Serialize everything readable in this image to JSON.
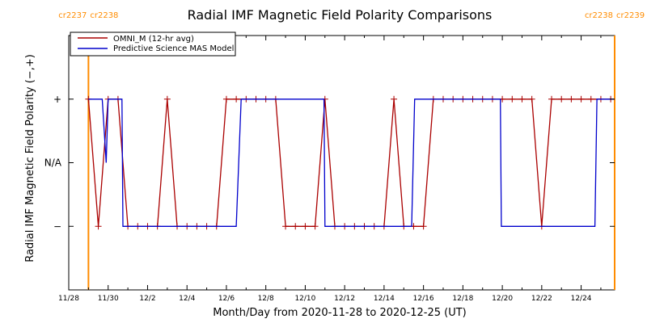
{
  "chart_data": {
    "type": "line",
    "title": "Radial IMF Magnetic Field Polarity Comparisons",
    "xlabel": "Month/Day from 2020-11-28 to 2020-12-25 (UT)",
    "ylabel": "Radial IMF Magnetic Field Polarity (−,+)",
    "xlim": [
      0,
      27.7
    ],
    "ylim": [
      -2,
      2
    ],
    "x_unit": "days after 2020-11-28 00:00 UT",
    "x_ticks": [
      {
        "value": 0,
        "label": "11/28"
      },
      {
        "value": 2,
        "label": "11/30"
      },
      {
        "value": 4,
        "label": "12/2"
      },
      {
        "value": 6,
        "label": "12/4"
      },
      {
        "value": 8,
        "label": "12/6"
      },
      {
        "value": 10,
        "label": "12/8"
      },
      {
        "value": 12,
        "label": "12/10"
      },
      {
        "value": 14,
        "label": "12/12"
      },
      {
        "value": 16,
        "label": "12/14"
      },
      {
        "value": 18,
        "label": "12/16"
      },
      {
        "value": 20,
        "label": "12/18"
      },
      {
        "value": 22,
        "label": "12/20"
      },
      {
        "value": 24,
        "label": "12/22"
      },
      {
        "value": 26,
        "label": "12/24"
      }
    ],
    "y_ticks": [
      {
        "value": 1,
        "label": "+"
      },
      {
        "value": 0,
        "label": "N/A"
      },
      {
        "value": -1,
        "label": "−"
      }
    ],
    "series": [
      {
        "name": "OMNI_M (12-hr avg)",
        "color": "#aa0000",
        "marker": "+",
        "x": [
          1.0,
          1.5,
          2.0,
          2.5,
          3.0,
          3.5,
          4.0,
          4.5,
          5.0,
          5.5,
          6.0,
          6.5,
          7.0,
          7.5,
          8.0,
          8.5,
          9.0,
          9.5,
          10.0,
          10.5,
          11.0,
          11.5,
          12.0,
          12.5,
          13.0,
          13.5,
          14.0,
          14.5,
          15.0,
          15.5,
          16.0,
          16.5,
          17.0,
          17.5,
          18.0,
          18.5,
          19.0,
          19.5,
          20.0,
          20.5,
          21.0,
          21.5,
          22.0,
          22.5,
          23.0,
          23.5,
          24.0,
          24.5,
          25.0,
          25.5,
          26.0,
          26.5,
          27.0,
          27.5
        ],
        "y": [
          1,
          -1,
          1,
          1,
          -1,
          -1,
          -1,
          -1,
          1,
          -1,
          -1,
          -1,
          -1,
          -1,
          1,
          1,
          1,
          1,
          1,
          1,
          -1,
          -1,
          -1,
          -1,
          1,
          -1,
          -1,
          -1,
          -1,
          -1,
          -1,
          1,
          -1,
          -1,
          -1,
          1,
          1,
          1,
          1,
          1,
          1,
          1,
          1,
          1,
          1,
          1,
          -1,
          1,
          1,
          1,
          1,
          1,
          1,
          1
        ]
      },
      {
        "name": "Predictive Science MAS Model",
        "color": "#0000cc",
        "x": [
          1.0,
          1.7,
          1.9,
          2.0,
          2.7,
          2.75,
          8.5,
          8.75,
          12.95,
          13.0,
          17.4,
          17.55,
          21.9,
          21.95,
          26.7,
          26.8,
          27.7
        ],
        "y": [
          1,
          1,
          0,
          1,
          1,
          -1,
          -1,
          1,
          1,
          -1,
          -1,
          1,
          1,
          -1,
          -1,
          1,
          1
        ]
      }
    ],
    "carrington_markers": [
      {
        "x": 1.0,
        "label_left": "cr2237",
        "label_right": "cr2238"
      },
      {
        "x": 27.7,
        "label_left": "cr2238",
        "label_right": "cr2239"
      }
    ],
    "marker_color": "#ff8c00",
    "grid": false,
    "legend": "top-left"
  }
}
